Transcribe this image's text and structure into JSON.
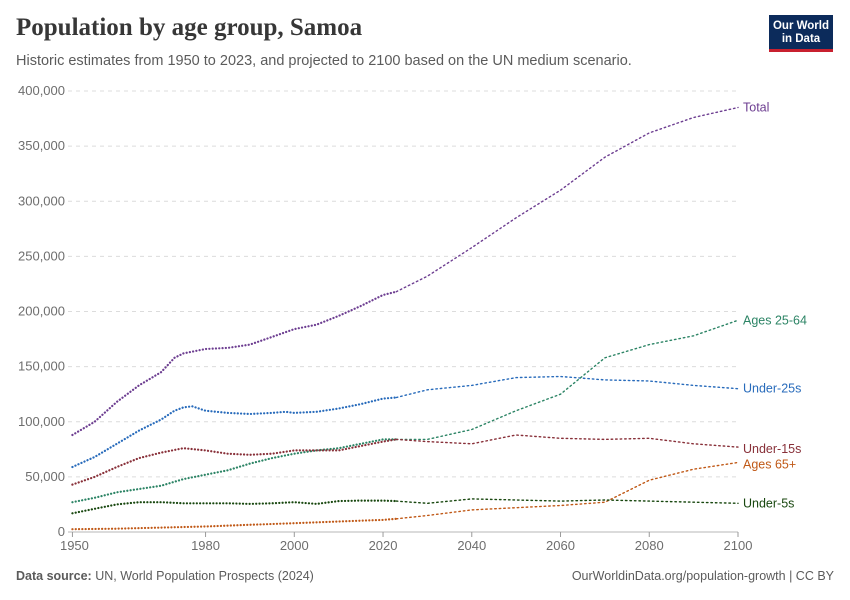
{
  "header": {
    "title": "Population by age group, Samoa",
    "subtitle": "Historic estimates from 1950 to 2023, and projected to 2100 based on the UN medium scenario.",
    "logo_line1": "Our World",
    "logo_line2": "in Data"
  },
  "footer": {
    "source_label": "Data source:",
    "source_text": "UN, World Population Prospects (2024)",
    "url": "OurWorldinData.org/population-growth | CC BY"
  },
  "chart_data": {
    "type": "line",
    "title": "Population by age group, Samoa",
    "xlim": [
      1949,
      2100
    ],
    "ylim": [
      0,
      400000
    ],
    "x_ticks": [
      1950,
      1980,
      2000,
      2020,
      2040,
      2060,
      2080,
      2100
    ],
    "y_ticks": [
      0,
      50000,
      100000,
      150000,
      200000,
      250000,
      300000,
      350000,
      400000
    ],
    "y_tick_labels": [
      "0",
      "50,000",
      "100,000",
      "150,000",
      "200,000",
      "250,000",
      "300,000",
      "350,000",
      "400,000"
    ],
    "grid": "horizontal dashed",
    "historic_end_year": 2023,
    "projection_style": "dotted",
    "series": [
      {
        "name": "Total",
        "color": "#6d3e91",
        "historic": [
          [
            1950,
            88000
          ],
          [
            1955,
            100000
          ],
          [
            1960,
            118000
          ],
          [
            1965,
            133000
          ],
          [
            1970,
            145000
          ],
          [
            1973,
            158000
          ],
          [
            1975,
            162000
          ],
          [
            1980,
            166000
          ],
          [
            1985,
            167000
          ],
          [
            1990,
            170000
          ],
          [
            1995,
            177000
          ],
          [
            2000,
            184000
          ],
          [
            2005,
            188000
          ],
          [
            2010,
            196000
          ],
          [
            2015,
            205000
          ],
          [
            2020,
            215000
          ],
          [
            2023,
            218000
          ]
        ],
        "projected": [
          [
            2023,
            218000
          ],
          [
            2030,
            232000
          ],
          [
            2040,
            258000
          ],
          [
            2050,
            285000
          ],
          [
            2060,
            310000
          ],
          [
            2070,
            340000
          ],
          [
            2080,
            362000
          ],
          [
            2090,
            376000
          ],
          [
            2100,
            385000
          ]
        ]
      },
      {
        "name": "Under-25s",
        "color": "#286bbb",
        "historic": [
          [
            1950,
            59000
          ],
          [
            1955,
            68000
          ],
          [
            1960,
            80000
          ],
          [
            1965,
            92000
          ],
          [
            1970,
            102000
          ],
          [
            1973,
            110000
          ],
          [
            1975,
            113000
          ],
          [
            1977,
            114000
          ],
          [
            1980,
            110000
          ],
          [
            1985,
            108000
          ],
          [
            1990,
            107000
          ],
          [
            1995,
            108000
          ],
          [
            1998,
            109000
          ],
          [
            2000,
            108000
          ],
          [
            2005,
            109000
          ],
          [
            2010,
            112000
          ],
          [
            2015,
            116000
          ],
          [
            2020,
            121000
          ],
          [
            2023,
            122000
          ]
        ],
        "projected": [
          [
            2023,
            122000
          ],
          [
            2030,
            129000
          ],
          [
            2040,
            133000
          ],
          [
            2050,
            140000
          ],
          [
            2060,
            141000
          ],
          [
            2070,
            138000
          ],
          [
            2080,
            137000
          ],
          [
            2090,
            133000
          ],
          [
            2100,
            130000
          ]
        ]
      },
      {
        "name": "Ages 25-64",
        "color": "#2c8465",
        "historic": [
          [
            1950,
            27000
          ],
          [
            1955,
            31000
          ],
          [
            1960,
            36000
          ],
          [
            1965,
            39000
          ],
          [
            1970,
            42000
          ],
          [
            1975,
            48000
          ],
          [
            1980,
            52000
          ],
          [
            1985,
            56000
          ],
          [
            1990,
            62000
          ],
          [
            1995,
            67000
          ],
          [
            2000,
            71000
          ],
          [
            2005,
            74000
          ],
          [
            2010,
            76000
          ],
          [
            2015,
            80000
          ],
          [
            2020,
            84000
          ],
          [
            2023,
            84000
          ]
        ],
        "projected": [
          [
            2023,
            84000
          ],
          [
            2030,
            84000
          ],
          [
            2040,
            93000
          ],
          [
            2050,
            110000
          ],
          [
            2060,
            125000
          ],
          [
            2070,
            158000
          ],
          [
            2080,
            170000
          ],
          [
            2090,
            178000
          ],
          [
            2100,
            192000
          ]
        ]
      },
      {
        "name": "Under-15s",
        "color": "#883039",
        "historic": [
          [
            1950,
            43000
          ],
          [
            1955,
            50000
          ],
          [
            1960,
            59000
          ],
          [
            1965,
            67000
          ],
          [
            1970,
            72000
          ],
          [
            1975,
            76000
          ],
          [
            1980,
            74000
          ],
          [
            1985,
            71000
          ],
          [
            1990,
            70000
          ],
          [
            1995,
            71000
          ],
          [
            2000,
            74000
          ],
          [
            2005,
            74000
          ],
          [
            2010,
            74000
          ],
          [
            2015,
            78000
          ],
          [
            2020,
            82000
          ],
          [
            2023,
            84000
          ]
        ],
        "projected": [
          [
            2023,
            84000
          ],
          [
            2030,
            82000
          ],
          [
            2040,
            80000
          ],
          [
            2050,
            88000
          ],
          [
            2060,
            85000
          ],
          [
            2070,
            84000
          ],
          [
            2080,
            85000
          ],
          [
            2090,
            80000
          ],
          [
            2100,
            77000
          ]
        ]
      },
      {
        "name": "Ages 65+",
        "color": "#c05917",
        "historic": [
          [
            1950,
            2500
          ],
          [
            1960,
            3000
          ],
          [
            1970,
            4000
          ],
          [
            1980,
            5000
          ],
          [
            1990,
            6500
          ],
          [
            2000,
            8000
          ],
          [
            2010,
            9500
          ],
          [
            2020,
            11000
          ],
          [
            2023,
            12000
          ]
        ],
        "projected": [
          [
            2023,
            12000
          ],
          [
            2030,
            15000
          ],
          [
            2040,
            20000
          ],
          [
            2050,
            22000
          ],
          [
            2060,
            24000
          ],
          [
            2070,
            27000
          ],
          [
            2080,
            47000
          ],
          [
            2090,
            57000
          ],
          [
            2100,
            63000
          ]
        ]
      },
      {
        "name": "Under-5s",
        "color": "#18470f",
        "historic": [
          [
            1950,
            17000
          ],
          [
            1955,
            21000
          ],
          [
            1960,
            25000
          ],
          [
            1965,
            27000
          ],
          [
            1970,
            27000
          ],
          [
            1975,
            26000
          ],
          [
            1980,
            26000
          ],
          [
            1985,
            26000
          ],
          [
            1990,
            25500
          ],
          [
            1995,
            26000
          ],
          [
            2000,
            27000
          ],
          [
            2005,
            25500
          ],
          [
            2010,
            28000
          ],
          [
            2015,
            28500
          ],
          [
            2020,
            28500
          ],
          [
            2023,
            28000
          ]
        ],
        "projected": [
          [
            2023,
            28000
          ],
          [
            2030,
            26000
          ],
          [
            2040,
            30000
          ],
          [
            2050,
            29000
          ],
          [
            2060,
            28000
          ],
          [
            2070,
            29000
          ],
          [
            2080,
            28000
          ],
          [
            2090,
            27000
          ],
          [
            2100,
            26000
          ]
        ]
      }
    ]
  }
}
